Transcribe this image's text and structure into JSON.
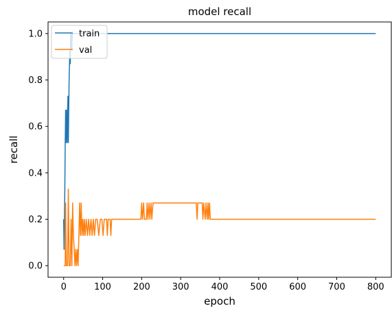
{
  "chart_data": {
    "type": "line",
    "title": "model recall",
    "xlabel": "epoch",
    "ylabel": "recall",
    "xlim": [
      -40,
      840
    ],
    "ylim": [
      -0.05,
      1.05
    ],
    "xticks": [
      0,
      100,
      200,
      300,
      400,
      500,
      600,
      700,
      800
    ],
    "yticks": [
      0.0,
      0.2,
      0.4,
      0.6,
      0.8,
      1.0
    ],
    "grid": false,
    "legend": {
      "placement": "upper-left"
    },
    "series": [
      {
        "name": "train",
        "color": "#1f77b4",
        "points": [
          [
            0,
            0.2
          ],
          [
            1,
            0.07
          ],
          [
            2,
            0.2
          ],
          [
            3,
            0.33
          ],
          [
            4,
            0.53
          ],
          [
            5,
            0.67
          ],
          [
            6,
            0.53
          ],
          [
            7,
            0.67
          ],
          [
            8,
            0.6
          ],
          [
            9,
            0.53
          ],
          [
            10,
            0.67
          ],
          [
            11,
            0.73
          ],
          [
            12,
            0.53
          ],
          [
            13,
            0.67
          ],
          [
            14,
            0.8
          ],
          [
            15,
            0.87
          ],
          [
            16,
            0.93
          ],
          [
            17,
            0.87
          ],
          [
            18,
            1.0
          ],
          [
            19,
            0.93
          ],
          [
            20,
            1.0
          ],
          [
            21,
            0.93
          ],
          [
            22,
            1.0
          ],
          [
            800,
            1.0
          ]
        ]
      },
      {
        "name": "val",
        "color": "#ff7f0e",
        "points": [
          [
            0,
            0.0
          ],
          [
            4,
            0.0
          ],
          [
            5,
            0.27
          ],
          [
            7,
            0.0
          ],
          [
            10,
            0.0
          ],
          [
            12,
            0.33
          ],
          [
            14,
            0.0
          ],
          [
            17,
            0.0
          ],
          [
            19,
            0.2
          ],
          [
            21,
            0.0
          ],
          [
            23,
            0.27
          ],
          [
            25,
            0.13
          ],
          [
            27,
            0.07
          ],
          [
            29,
            0.0
          ],
          [
            31,
            0.07
          ],
          [
            33,
            0.0
          ],
          [
            35,
            0.07
          ],
          [
            37,
            0.0
          ],
          [
            39,
            0.13
          ],
          [
            41,
            0.27
          ],
          [
            43,
            0.13
          ],
          [
            45,
            0.27
          ],
          [
            47,
            0.13
          ],
          [
            49,
            0.2
          ],
          [
            51,
            0.13
          ],
          [
            53,
            0.2
          ],
          [
            55,
            0.13
          ],
          [
            58,
            0.2
          ],
          [
            61,
            0.13
          ],
          [
            64,
            0.2
          ],
          [
            67,
            0.13
          ],
          [
            70,
            0.2
          ],
          [
            73,
            0.13
          ],
          [
            76,
            0.2
          ],
          [
            79,
            0.13
          ],
          [
            82,
            0.2
          ],
          [
            86,
            0.2
          ],
          [
            90,
            0.13
          ],
          [
            94,
            0.2
          ],
          [
            98,
            0.2
          ],
          [
            101,
            0.13
          ],
          [
            104,
            0.2
          ],
          [
            110,
            0.2
          ],
          [
            112,
            0.13
          ],
          [
            114,
            0.2
          ],
          [
            119,
            0.2
          ],
          [
            121,
            0.13
          ],
          [
            123,
            0.2
          ],
          [
            198,
            0.2
          ],
          [
            200,
            0.27
          ],
          [
            202,
            0.2
          ],
          [
            205,
            0.27
          ],
          [
            207,
            0.2
          ],
          [
            212,
            0.2
          ],
          [
            214,
            0.27
          ],
          [
            216,
            0.2
          ],
          [
            219,
            0.27
          ],
          [
            221,
            0.2
          ],
          [
            224,
            0.27
          ],
          [
            226,
            0.2
          ],
          [
            229,
            0.27
          ],
          [
            340,
            0.27
          ],
          [
            342,
            0.2
          ],
          [
            344,
            0.27
          ],
          [
            355,
            0.27
          ],
          [
            357,
            0.2
          ],
          [
            359,
            0.27
          ],
          [
            363,
            0.2
          ],
          [
            365,
            0.27
          ],
          [
            368,
            0.2
          ],
          [
            370,
            0.27
          ],
          [
            372,
            0.2
          ],
          [
            374,
            0.27
          ],
          [
            376,
            0.2
          ],
          [
            800,
            0.2
          ]
        ]
      }
    ]
  }
}
